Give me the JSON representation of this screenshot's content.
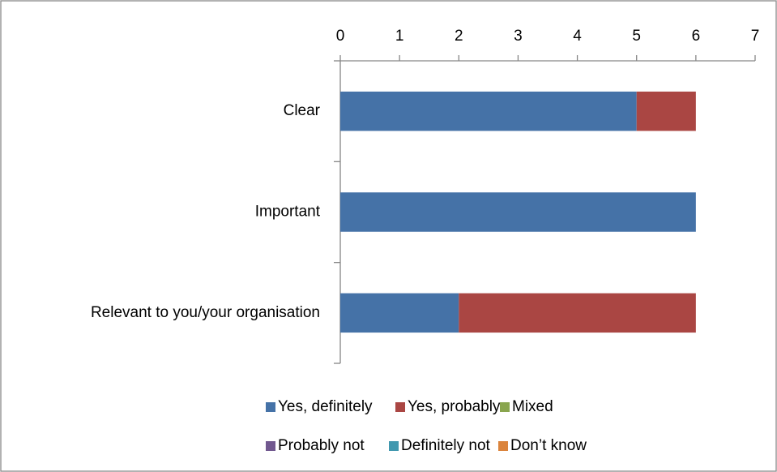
{
  "chart_data": {
    "type": "stacked-barh",
    "categories": [
      "Clear",
      "Important",
      "Relevant to you/your organisation"
    ],
    "series": [
      {
        "name": "Yes, definitely",
        "color": "#4572a7",
        "values": [
          5,
          6,
          2
        ]
      },
      {
        "name": "Yes, probably",
        "color": "#aa4643",
        "values": [
          1,
          0,
          4
        ]
      },
      {
        "name": "Mixed",
        "color": "#89a54e",
        "values": [
          0,
          0,
          0
        ]
      },
      {
        "name": "Probably not",
        "color": "#71588f",
        "values": [
          0,
          0,
          0
        ]
      },
      {
        "name": "Definitely not",
        "color": "#4198af",
        "values": [
          0,
          0,
          0
        ]
      },
      {
        "name": "Don’t know",
        "color": "#db843d",
        "values": [
          0,
          0,
          0
        ]
      }
    ],
    "xlim": [
      0,
      7
    ],
    "xticks": [
      0,
      1,
      2,
      3,
      4,
      5,
      6,
      7
    ],
    "legend": "bottom"
  }
}
